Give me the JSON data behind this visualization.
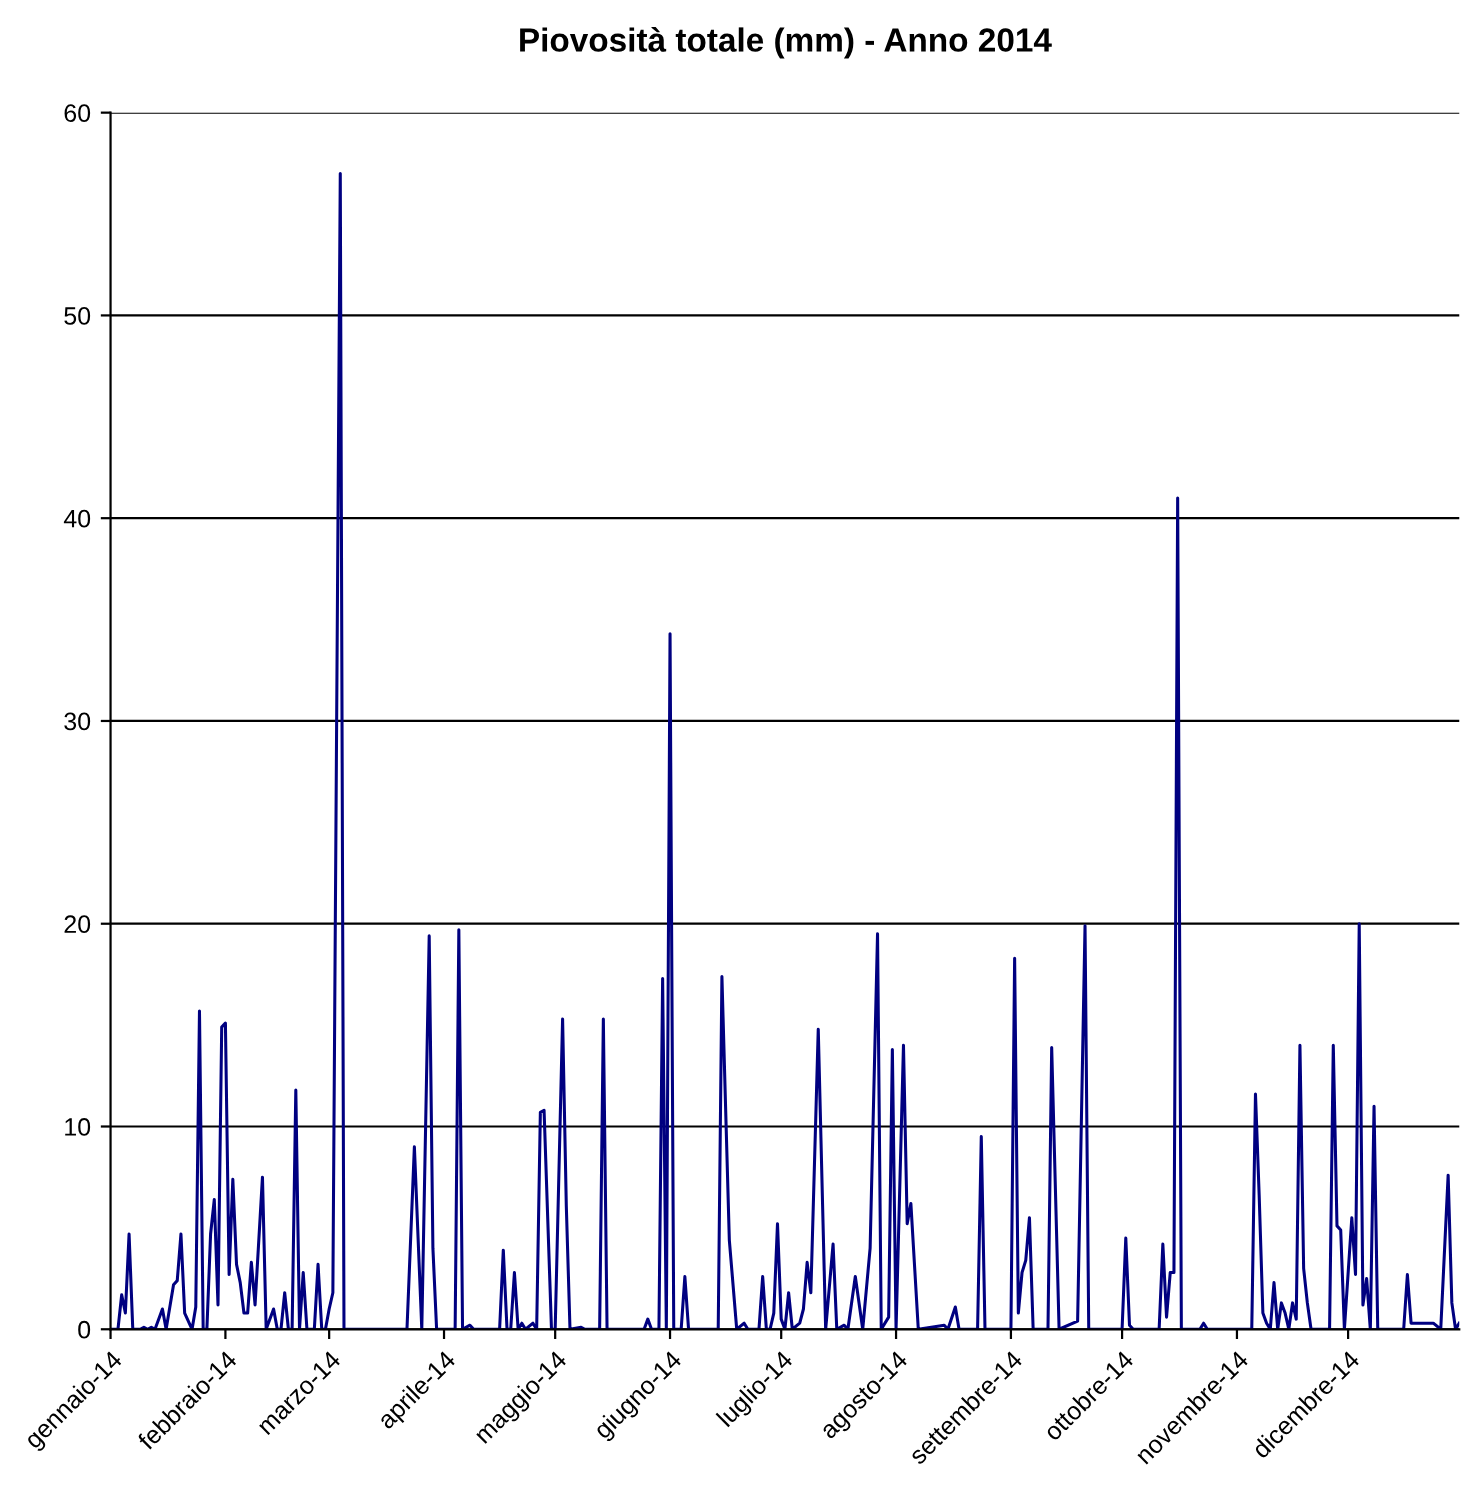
{
  "chart_data": {
    "type": "line",
    "title": "Piovosità totale (mm) - Anno 2014",
    "x": [
      "2014-01-01",
      "2014-01-02",
      "2014-01-03",
      "2014-01-04",
      "2014-01-05",
      "2014-01-06",
      "2014-01-07",
      "2014-01-09",
      "2014-01-10",
      "2014-01-11",
      "2014-01-12",
      "2014-01-13",
      "2014-01-15",
      "2014-01-16",
      "2014-01-18",
      "2014-01-19",
      "2014-01-20",
      "2014-01-21",
      "2014-01-23",
      "2014-01-24",
      "2014-01-25",
      "2014-01-26",
      "2014-01-27",
      "2014-01-28",
      "2014-01-29",
      "2014-01-30",
      "2014-01-31",
      "2014-02-01",
      "2014-02-02",
      "2014-02-03",
      "2014-02-04",
      "2014-02-05",
      "2014-02-06",
      "2014-02-07",
      "2014-02-08",
      "2014-02-09",
      "2014-02-11",
      "2014-02-12",
      "2014-02-14",
      "2014-02-15",
      "2014-02-16",
      "2014-02-17",
      "2014-02-18",
      "2014-02-19",
      "2014-02-20",
      "2014-02-21",
      "2014-02-22",
      "2014-02-23",
      "2014-02-25",
      "2014-02-26",
      "2014-02-27",
      "2014-02-28",
      "2014-03-01",
      "2014-03-02",
      "2014-03-04",
      "2014-03-05",
      "2014-03-22",
      "2014-03-24",
      "2014-03-26",
      "2014-03-28",
      "2014-03-29",
      "2014-03-30",
      "2014-04-04",
      "2014-04-05",
      "2014-04-06",
      "2014-04-08",
      "2014-04-09",
      "2014-04-16",
      "2014-04-17",
      "2014-04-18",
      "2014-04-19",
      "2014-04-20",
      "2014-04-21",
      "2014-04-22",
      "2014-04-23",
      "2014-04-25",
      "2014-04-26",
      "2014-04-27",
      "2014-04-28",
      "2014-04-30",
      "2014-05-01",
      "2014-05-03",
      "2014-05-04",
      "2014-05-05",
      "2014-05-08",
      "2014-05-09",
      "2014-05-13",
      "2014-05-14",
      "2014-05-15",
      "2014-05-25",
      "2014-05-26",
      "2014-05-27",
      "2014-05-29",
      "2014-05-30",
      "2014-05-31",
      "2014-06-01",
      "2014-06-02",
      "2014-06-04",
      "2014-06-05",
      "2014-06-06",
      "2014-06-14",
      "2014-06-15",
      "2014-06-17",
      "2014-06-19",
      "2014-06-21",
      "2014-06-22",
      "2014-06-25",
      "2014-06-26",
      "2014-06-27",
      "2014-06-28",
      "2014-06-29",
      "2014-06-30",
      "2014-07-01",
      "2014-07-02",
      "2014-07-03",
      "2014-07-04",
      "2014-07-06",
      "2014-07-07",
      "2014-07-08",
      "2014-07-09",
      "2014-07-11",
      "2014-07-13",
      "2014-07-15",
      "2014-07-16",
      "2014-07-18",
      "2014-07-19",
      "2014-07-21",
      "2014-07-23",
      "2014-07-25",
      "2014-07-27",
      "2014-07-28",
      "2014-07-30",
      "2014-07-31",
      "2014-08-01",
      "2014-08-03",
      "2014-08-04",
      "2014-08-05",
      "2014-08-07",
      "2014-08-14",
      "2014-08-15",
      "2014-08-17",
      "2014-08-18",
      "2014-08-23",
      "2014-08-24",
      "2014-08-25",
      "2014-09-01",
      "2014-09-02",
      "2014-09-03",
      "2014-09-04",
      "2014-09-05",
      "2014-09-06",
      "2014-09-07",
      "2014-09-11",
      "2014-09-12",
      "2014-09-14",
      "2014-09-19",
      "2014-09-21",
      "2014-09-22",
      "2014-10-01",
      "2014-10-02",
      "2014-10-03",
      "2014-10-04",
      "2014-10-11",
      "2014-10-12",
      "2014-10-13",
      "2014-10-14",
      "2014-10-15",
      "2014-10-16",
      "2014-10-17",
      "2014-10-22",
      "2014-10-23",
      "2014-10-24",
      "2014-11-05",
      "2014-11-06",
      "2014-11-07",
      "2014-11-08",
      "2014-11-09",
      "2014-11-10",
      "2014-11-11",
      "2014-11-12",
      "2014-11-13",
      "2014-11-14",
      "2014-11-15",
      "2014-11-16",
      "2014-11-17",
      "2014-11-18",
      "2014-11-19",
      "2014-11-20",
      "2014-11-21",
      "2014-11-26",
      "2014-11-27",
      "2014-11-28",
      "2014-11-29",
      "2014-11-30",
      "2014-12-02",
      "2014-12-03",
      "2014-12-04",
      "2014-12-05",
      "2014-12-06",
      "2014-12-07",
      "2014-12-08",
      "2014-12-09",
      "2014-12-16",
      "2014-12-17",
      "2014-12-18",
      "2014-12-23",
      "2014-12-24",
      "2014-12-26",
      "2014-12-28",
      "2014-12-29",
      "2014-12-30",
      "2014-12-31"
    ],
    "series": [
      {
        "color": "#000080",
        "values": [
          0,
          0,
          0,
          1.7,
          0.8,
          4.7,
          0,
          0,
          0.1,
          0,
          0.1,
          0,
          1.0,
          0,
          2.2,
          2.4,
          4.7,
          0.8,
          0,
          1.1,
          15.7,
          0,
          0,
          4.7,
          6.4,
          1.2,
          14.9,
          15.1,
          2.7,
          7.4,
          3.2,
          2.3,
          0.8,
          0.8,
          3.3,
          1.2,
          7.5,
          0,
          1.0,
          0,
          0,
          1.8,
          0,
          0,
          11.8,
          0,
          2.8,
          0,
          0,
          3.2,
          0,
          0,
          1.0,
          1.8,
          57.0,
          0,
          0,
          9.0,
          0,
          19.4,
          4.0,
          0,
          0,
          19.7,
          0,
          0.2,
          0,
          0,
          3.9,
          0,
          0,
          2.8,
          0,
          0.3,
          0,
          0.3,
          0,
          10.7,
          10.8,
          0,
          0,
          15.3,
          6.1,
          0,
          0.1,
          0,
          0,
          15.3,
          0,
          0,
          0.5,
          0,
          0,
          17.3,
          0,
          34.3,
          0,
          0,
          2.6,
          0,
          0,
          17.4,
          4.4,
          0,
          0.3,
          0,
          0,
          2.6,
          0,
          0,
          0.8,
          5.2,
          0.5,
          0,
          1.8,
          0,
          0.3,
          1.0,
          3.3,
          1.8,
          14.8,
          0,
          4.2,
          0,
          0.2,
          0,
          2.6,
          0,
          4.0,
          19.5,
          0,
          0.6,
          13.8,
          0,
          14.0,
          5.2,
          6.2,
          0,
          0.2,
          0,
          1.1,
          0,
          0,
          9.5,
          0,
          0,
          18.3,
          0.8,
          2.8,
          3.4,
          5.5,
          0,
          0,
          13.9,
          0,
          0.4,
          19.9,
          0,
          0,
          4.5,
          0.2,
          0,
          0,
          4.2,
          0.6,
          2.8,
          2.8,
          41.0,
          0,
          0,
          0.3,
          0,
          0,
          11.6,
          6.6,
          0.8,
          0.3,
          0,
          2.3,
          0,
          1.3,
          0.8,
          0,
          1.3,
          0.5,
          14.0,
          3.0,
          1.3,
          0,
          0,
          14.0,
          5.1,
          4.9,
          0,
          5.5,
          2.7,
          20.0,
          1.2,
          2.5,
          0,
          11.0,
          0,
          0,
          2.7,
          0.3,
          0.3,
          0.3,
          0,
          7.6,
          1.3,
          0,
          0.3
        ]
      }
    ],
    "xlim": [
      "2014-01-01",
      "2014-12-31"
    ],
    "xticks": [
      {
        "value": "2014-01-01",
        "label": "gennaio-14"
      },
      {
        "value": "2014-02-01",
        "label": "febbraio-14"
      },
      {
        "value": "2014-03-01",
        "label": "marzo-14"
      },
      {
        "value": "2014-04-01",
        "label": "aprile-14"
      },
      {
        "value": "2014-05-01",
        "label": "maggio-14"
      },
      {
        "value": "2014-06-01",
        "label": "giugno-14"
      },
      {
        "value": "2014-07-01",
        "label": "luglio-14"
      },
      {
        "value": "2014-08-01",
        "label": "agosto-14"
      },
      {
        "value": "2014-09-01",
        "label": "settembre-14"
      },
      {
        "value": "2014-10-01",
        "label": "ottobre-14"
      },
      {
        "value": "2014-11-01",
        "label": "novembre-14"
      },
      {
        "value": "2014-12-01",
        "label": "dicembre-14"
      }
    ],
    "ylim": [
      0,
      60
    ],
    "yticks": [
      0,
      10,
      20,
      30,
      40,
      50,
      60
    ],
    "grid": "y",
    "legend": false,
    "marker": "none",
    "line_style": "solid"
  }
}
